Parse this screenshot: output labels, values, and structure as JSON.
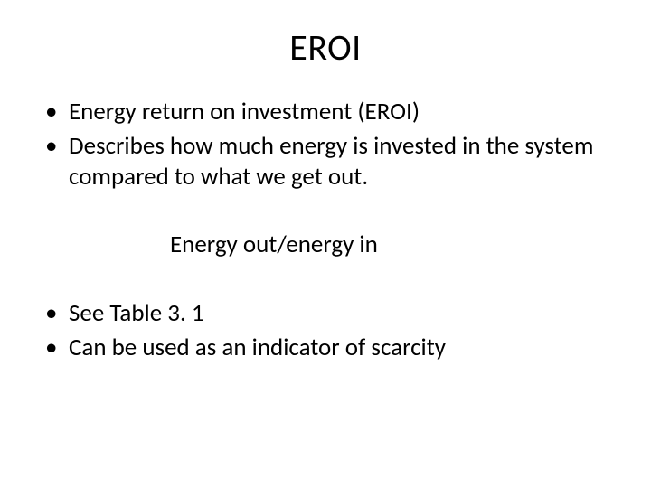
{
  "slide": {
    "title": "EROI",
    "bullets_top": [
      "Energy return on investment (EROI)",
      "Describes how much energy is invested in the system compared to what we get out."
    ],
    "formula": "Energy out/energy in",
    "bullets_bottom": [
      "See Table 3. 1",
      "Can be used as an indicator of scarcity"
    ],
    "colors": {
      "background": "#ffffff",
      "text": "#000000"
    },
    "typography": {
      "title_fontsize": 40,
      "body_fontsize": 27,
      "font_family": "Calibri"
    }
  }
}
